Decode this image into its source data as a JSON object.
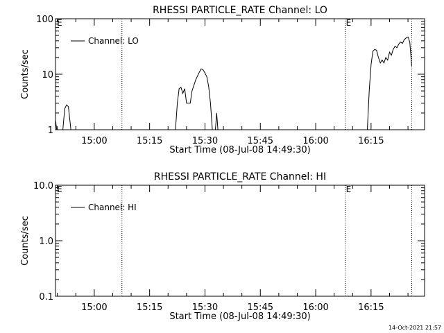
{
  "chart_data": [
    {
      "type": "line",
      "title": "RHESSI PARTICLE_RATE Channel: LO",
      "xlabel": "Start Time (08-Jul-08 14:49:30)",
      "ylabel": "Counts/sec",
      "yscale": "log",
      "ylim": [
        1,
        100
      ],
      "xlim": [
        "14:49:30",
        "16:29:30"
      ],
      "x_ticks": [
        "15:00",
        "15:15",
        "15:30",
        "15:45",
        "16:00",
        "16:15"
      ],
      "y_ticks": [
        {
          "value": 1,
          "label": "1"
        },
        {
          "value": 10,
          "label": "10"
        },
        {
          "value": 100,
          "label": "100"
        }
      ],
      "legend": {
        "placement": "top-left",
        "label": "Channel: LO"
      },
      "markers": [
        {
          "time": "15:07:30",
          "label": ""
        },
        {
          "time": "16:08:00",
          "label": "E"
        },
        {
          "time": "16:26:00",
          "label": ""
        }
      ],
      "corner_label": "E",
      "grid": false,
      "series": [
        {
          "name": "Channel: LO",
          "segments": [
            [
              {
                "x": "14:49:30",
                "y": 1.5
              },
              {
                "x": "14:49:50",
                "y": 1.0
              }
            ],
            [
              {
                "x": "14:51:30",
                "y": 1.0
              },
              {
                "x": "14:52:00",
                "y": 2.4
              },
              {
                "x": "14:52:30",
                "y": 2.8
              },
              {
                "x": "14:53:00",
                "y": 2.6
              },
              {
                "x": "14:53:40",
                "y": 1.0
              }
            ],
            [
              {
                "x": "15:22:00",
                "y": 1.0
              },
              {
                "x": "15:22:30",
                "y": 3.0
              },
              {
                "x": "15:23:00",
                "y": 5.5
              },
              {
                "x": "15:23:30",
                "y": 5.8
              },
              {
                "x": "15:24:00",
                "y": 4.5
              },
              {
                "x": "15:24:30",
                "y": 5.5
              },
              {
                "x": "15:25:00",
                "y": 3.0
              },
              {
                "x": "15:26:00",
                "y": 3.0
              },
              {
                "x": "15:26:30",
                "y": 5.0
              },
              {
                "x": "15:27:30",
                "y": 8.0
              },
              {
                "x": "15:28:30",
                "y": 11.0
              },
              {
                "x": "15:29:00",
                "y": 12.5
              },
              {
                "x": "15:29:30",
                "y": 12.0
              },
              {
                "x": "15:30:00",
                "y": 10.5
              },
              {
                "x": "15:30:30",
                "y": 9.0
              },
              {
                "x": "15:31:00",
                "y": 6.0
              },
              {
                "x": "15:31:30",
                "y": 3.0
              },
              {
                "x": "15:32:00",
                "y": 1.0
              }
            ],
            [
              {
                "x": "15:32:50",
                "y": 1.0
              },
              {
                "x": "15:33:10",
                "y": 2.0
              },
              {
                "x": "15:33:30",
                "y": 1.0
              }
            ],
            [
              {
                "x": "16:14:00",
                "y": 1.0
              },
              {
                "x": "16:14:30",
                "y": 5.0
              },
              {
                "x": "16:15:00",
                "y": 15.0
              },
              {
                "x": "16:15:30",
                "y": 26.0
              },
              {
                "x": "16:16:00",
                "y": 28.0
              },
              {
                "x": "16:16:30",
                "y": 27.0
              },
              {
                "x": "16:17:00",
                "y": 20.0
              },
              {
                "x": "16:17:30",
                "y": 16.0
              },
              {
                "x": "16:18:00",
                "y": 18.0
              },
              {
                "x": "16:18:30",
                "y": 16.0
              },
              {
                "x": "16:19:00",
                "y": 20.0
              },
              {
                "x": "16:19:30",
                "y": 18.0
              },
              {
                "x": "16:20:00",
                "y": 25.0
              },
              {
                "x": "16:20:30",
                "y": 22.0
              },
              {
                "x": "16:21:00",
                "y": 28.0
              },
              {
                "x": "16:21:30",
                "y": 32.0
              },
              {
                "x": "16:22:00",
                "y": 30.0
              },
              {
                "x": "16:22:30",
                "y": 35.0
              },
              {
                "x": "16:23:00",
                "y": 38.0
              },
              {
                "x": "16:23:30",
                "y": 36.0
              },
              {
                "x": "16:24:00",
                "y": 42.0
              },
              {
                "x": "16:24:30",
                "y": 45.0
              },
              {
                "x": "16:25:00",
                "y": 47.0
              },
              {
                "x": "16:25:30",
                "y": 38.0
              },
              {
                "x": "16:26:00",
                "y": 14.0
              }
            ]
          ]
        }
      ]
    },
    {
      "type": "line",
      "title": "RHESSI PARTICLE_RATE Channel: HI",
      "xlabel": "Start Time (08-Jul-08 14:49:30)",
      "ylabel": "Counts/sec",
      "yscale": "log",
      "ylim": [
        0.1,
        10
      ],
      "xlim": [
        "14:49:30",
        "16:29:30"
      ],
      "x_ticks": [
        "15:00",
        "15:15",
        "15:30",
        "15:45",
        "16:00",
        "16:15"
      ],
      "y_ticks": [
        {
          "value": 0.1,
          "label": "0.1"
        },
        {
          "value": 1,
          "label": "1.0"
        },
        {
          "value": 10,
          "label": "10.0"
        }
      ],
      "legend": {
        "placement": "top-left",
        "label": "Channel: HI"
      },
      "markers": [
        {
          "time": "15:07:30",
          "label": ""
        },
        {
          "time": "16:08:00",
          "label": "E"
        },
        {
          "time": "16:26:00",
          "label": ""
        }
      ],
      "corner_label": "E",
      "grid": false,
      "series": [
        {
          "name": "Channel: HI",
          "segments": []
        }
      ]
    }
  ],
  "footer": {
    "timestamp": "14-Oct-2021 21:57"
  }
}
